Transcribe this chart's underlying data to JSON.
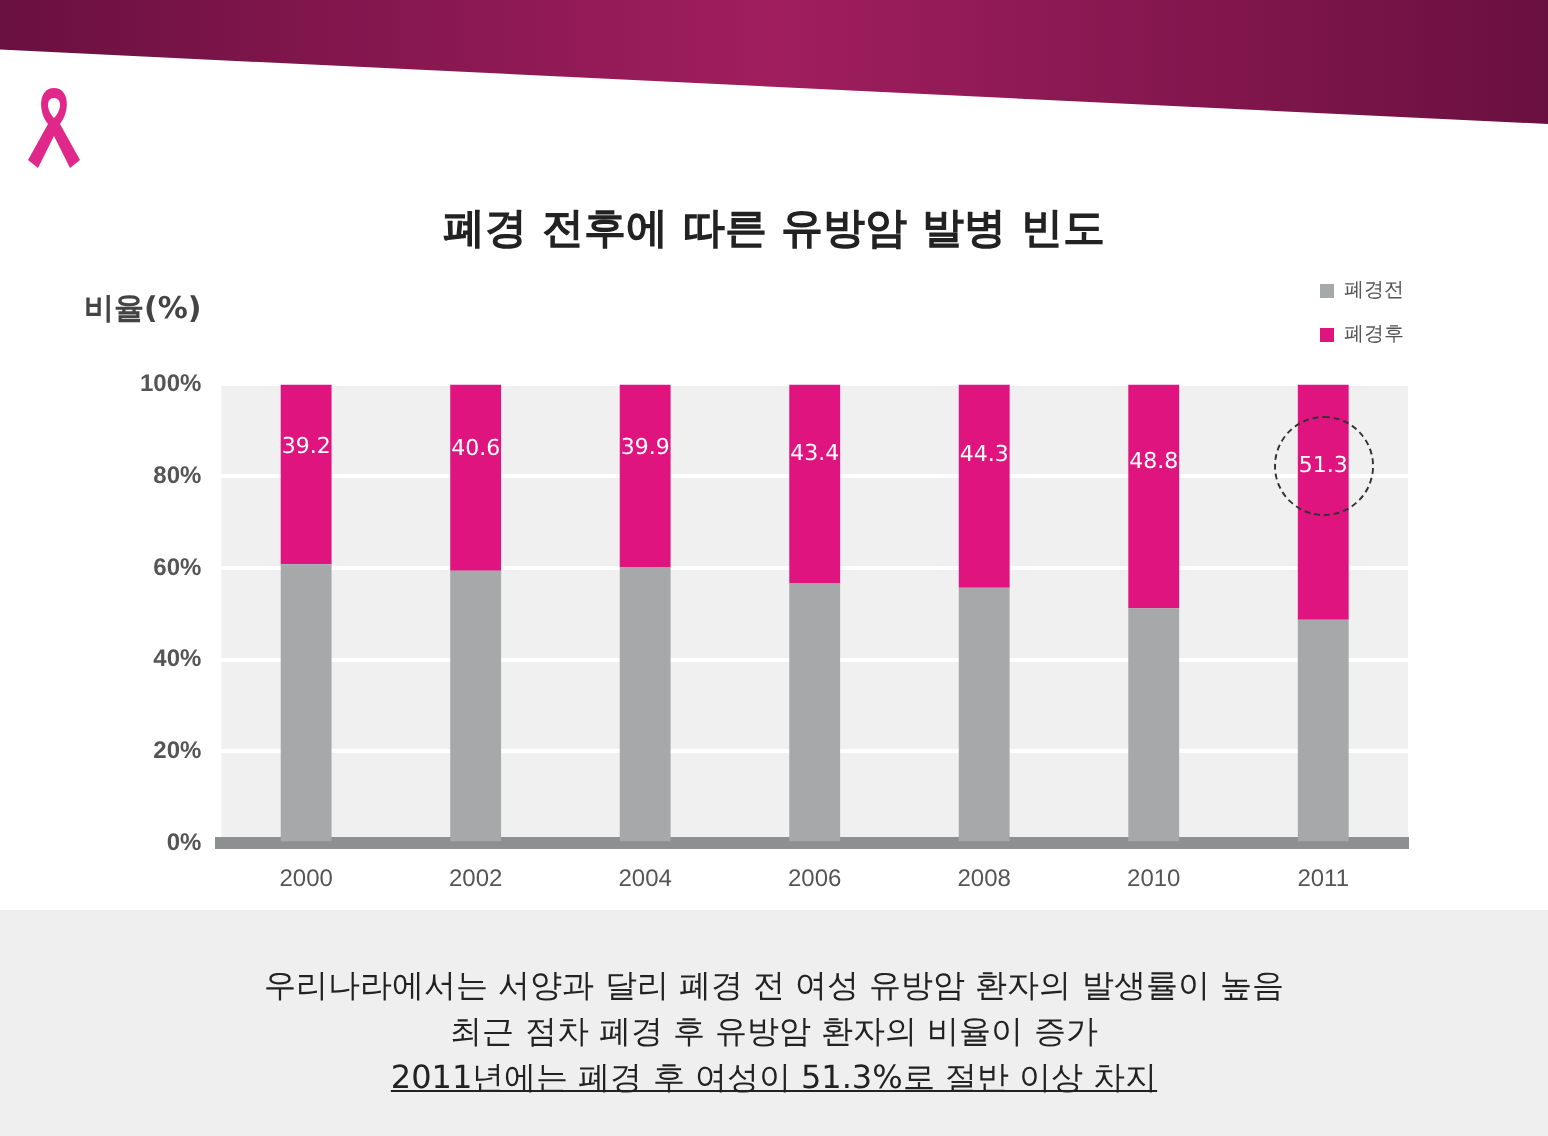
{
  "chart_data": {
    "type": "bar",
    "title": "폐경 전후에 따른 유방암 발병 빈도",
    "ylabel": "비율(%)",
    "stacked": true,
    "legend": "top right",
    "grid": "y",
    "categories": [
      "2000",
      "2002",
      "2004",
      "2006",
      "2008",
      "2010",
      "2011"
    ],
    "ylim": [
      0,
      100
    ],
    "yticks": [
      {
        "value": 0,
        "label": "0%"
      },
      {
        "value": 20,
        "label": "20%"
      },
      {
        "value": 40,
        "label": "40%"
      },
      {
        "value": 60,
        "label": "60%"
      },
      {
        "value": 80,
        "label": "80%"
      },
      {
        "value": 100,
        "label": "100%"
      }
    ],
    "series": [
      {
        "name": "폐경전",
        "color": "#a7a8aa",
        "values": [
          60.8,
          59.4,
          60.1,
          56.6,
          55.7,
          51.2,
          48.7
        ]
      },
      {
        "name": "폐경후",
        "color": "#e0147f",
        "values": [
          39.2,
          40.6,
          39.9,
          43.4,
          44.3,
          48.8,
          51.3
        ],
        "value_labels": [
          "39.2",
          "40.6",
          "39.9",
          "43.4",
          "44.3",
          "48.8",
          "51.3"
        ]
      }
    ],
    "annotations": [
      "우리나라에서는 서양과 달리 폐경 전 여성 유방암 환자의 발생률이 높음",
      "최근 점차 폐경 후 유방암 환자의 비율이 증가",
      "2011년에는 폐경 후 여성이 51.3%로 절반 이상 차지"
    ]
  }
}
